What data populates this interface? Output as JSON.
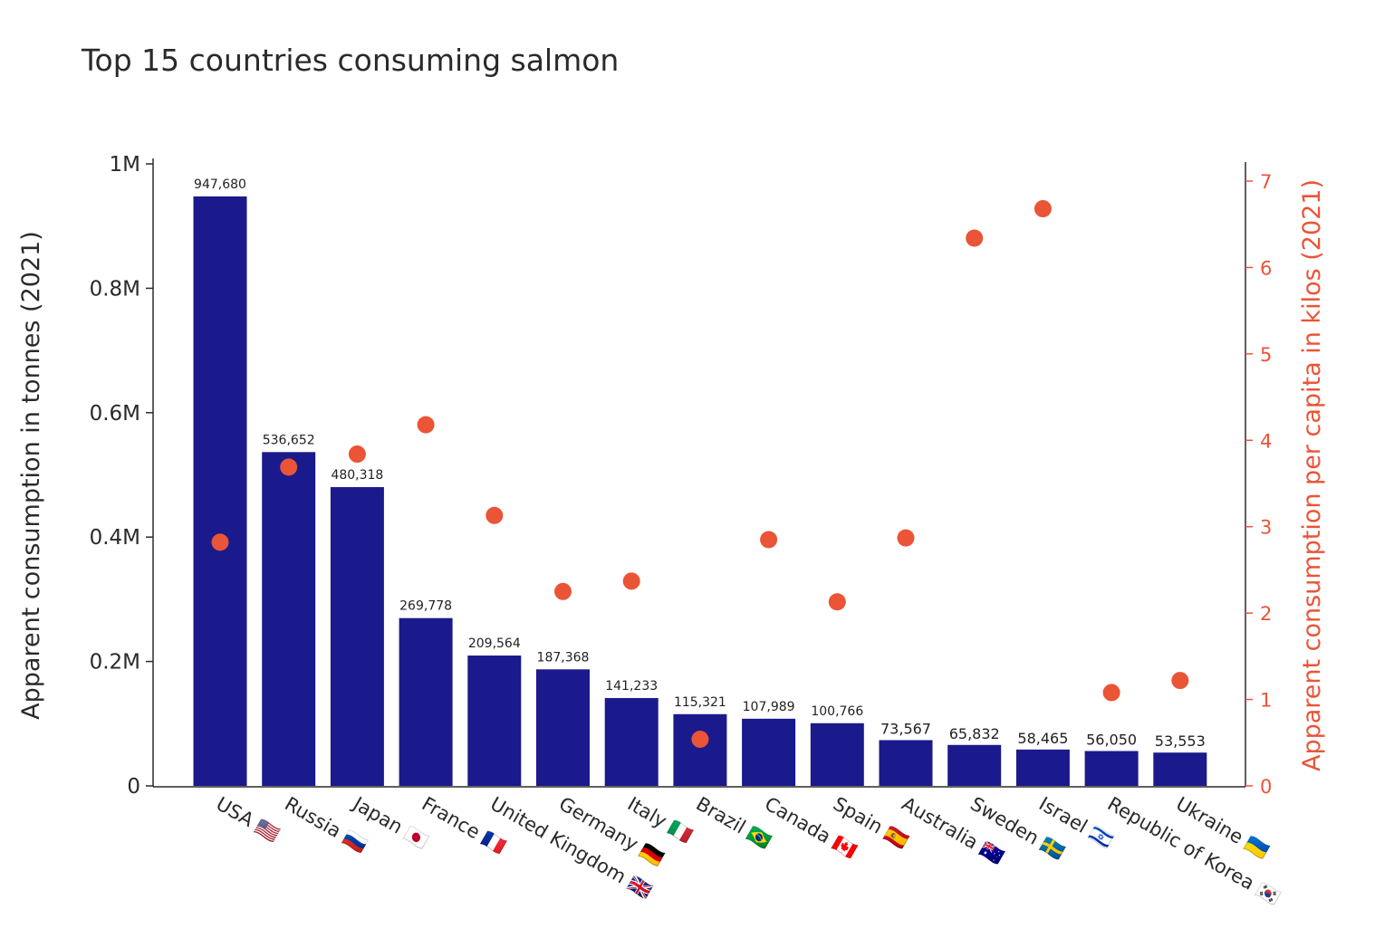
{
  "chart_data": {
    "type": "bar",
    "title": "Top 15 countries consuming salmon",
    "categories": [
      "USA 🇺🇸",
      "Russia 🇷🇺",
      "Japan 🇯🇵",
      "France 🇫🇷",
      "United Kingdom 🇬🇧",
      "Germany 🇩🇪",
      "Italy 🇮🇹",
      "Brazil 🇧🇷",
      "Canada 🇨🇦",
      "Spain 🇪🇸",
      "Australia 🇦🇺",
      "Sweden 🇸🇪",
      "Israel 🇮🇱",
      "Republic of Korea 🇰🇷",
      "Ukraine 🇺🇦"
    ],
    "series": [
      {
        "name": "Apparent consumption in tonnes (2021)",
        "type": "bar",
        "axis": "left",
        "color": "#1a1a8c",
        "values": [
          947680,
          536652,
          480318,
          269778,
          209564,
          187368,
          141233,
          115321,
          107989,
          100766,
          73567,
          65832,
          58465,
          56050,
          53553
        ],
        "labels": [
          "947,680",
          "536,652",
          "480,318",
          "269,778",
          "209,564",
          "187,368",
          "141,233",
          "115,321",
          "107,989",
          "100,766",
          "73,567",
          "65,832",
          "58,465",
          "56,050",
          "53,553"
        ]
      },
      {
        "name": "Apparent consumption per capita in kilos (2021)",
        "type": "scatter",
        "axis": "right",
        "color": "#ea5437",
        "values": [
          2.82,
          3.69,
          3.84,
          4.18,
          3.13,
          2.25,
          2.37,
          0.54,
          2.85,
          2.13,
          2.87,
          6.34,
          6.68,
          1.08,
          1.22
        ]
      }
    ],
    "y_left": {
      "label": "Apparent consumption in tonnes (2021)",
      "range": [
        0,
        1000000
      ],
      "ticks": [
        0,
        200000,
        400000,
        600000,
        800000,
        1000000
      ],
      "tick_labels": [
        "0",
        "0.2M",
        "0.4M",
        "0.6M",
        "0.8M",
        "1M"
      ]
    },
    "y_right": {
      "label": "Apparent consumption per capita in kilos (2021)",
      "range": [
        0,
        7.2
      ],
      "ticks": [
        0,
        1,
        2,
        3,
        4,
        5,
        6,
        7
      ],
      "tick_labels": [
        "0",
        "1",
        "2",
        "3",
        "4",
        "5",
        "6",
        "7"
      ],
      "color": "#ea5437"
    },
    "grid": false,
    "legend": "none"
  }
}
